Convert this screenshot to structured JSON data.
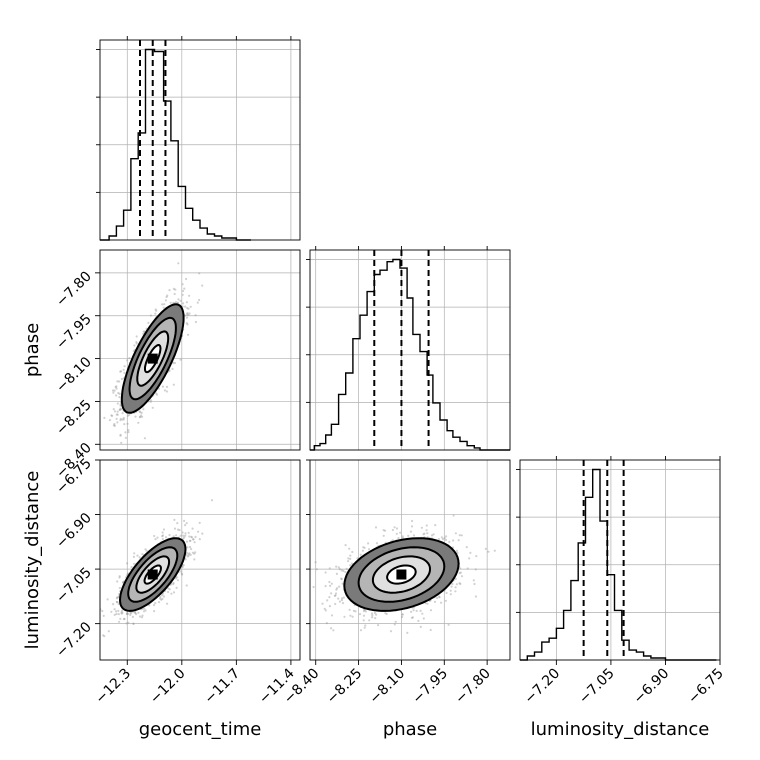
{
  "chart_data": {
    "type": "corner",
    "parameters": [
      "geocent_time",
      "phase",
      "luminosity_distance"
    ],
    "axis_labels": [
      "geocent_time",
      "phase",
      "luminosity_distance"
    ],
    "ranges": [
      [
        -12.45,
        -11.35
      ],
      [
        -8.42,
        -7.72
      ],
      [
        -7.3,
        -6.75
      ]
    ],
    "ticks": {
      "geocent_time": [
        -12.3,
        -12.0,
        -11.7,
        -11.4
      ],
      "phase": [
        -8.4,
        -8.25,
        -8.1,
        -7.95,
        -7.8
      ],
      "luminosity_distance": [
        -7.2,
        -7.05,
        -6.9,
        -6.75
      ]
    },
    "tick_labels": {
      "geocent_time": [
        "−12.3",
        "−12.0",
        "−11.7",
        "−11.4"
      ],
      "phase": [
        "−8.40",
        "−8.25",
        "−8.10",
        "−7.95",
        "−7.80"
      ],
      "luminosity_distance": [
        "−7.20",
        "−7.05",
        "−6.90",
        "−6.75"
      ]
    },
    "quantiles": {
      "geocent_time": [
        -12.23,
        -12.16,
        -12.09
      ],
      "phase": [
        -8.195,
        -8.1,
        -8.005
      ],
      "luminosity_distance": [
        -7.125,
        -7.06,
        -7.015
      ]
    },
    "histograms": {
      "geocent_time": {
        "bin_edges": [
          -12.45,
          -12.4,
          -12.36,
          -12.32,
          -12.28,
          -12.24,
          -12.2,
          -12.15,
          -12.1,
          -12.06,
          -12.02,
          -11.98,
          -11.94,
          -11.9,
          -11.86,
          -11.82,
          -11.78,
          -11.74,
          -11.7,
          -11.66,
          -11.62
        ],
        "counts": [
          0,
          2,
          7,
          15,
          41,
          54,
          96,
          95,
          70,
          50,
          27,
          16,
          10,
          6,
          3,
          2,
          1,
          1,
          0,
          0
        ]
      },
      "phase": {
        "bin_edges": [
          -8.42,
          -8.405,
          -8.385,
          -8.365,
          -8.345,
          -8.32,
          -8.295,
          -8.27,
          -8.245,
          -8.22,
          -8.195,
          -8.175,
          -8.15,
          -8.13,
          -8.105,
          -8.08,
          -8.06,
          -8.035,
          -8.01,
          -7.99,
          -7.965,
          -7.94,
          -7.92,
          -7.895,
          -7.87,
          -7.845,
          -7.825,
          -7.8,
          -7.775,
          -7.75,
          -7.72
        ],
        "counts": [
          0,
          2,
          3,
          7,
          12,
          26,
          36,
          52,
          63,
          74,
          82,
          84,
          88,
          89,
          85,
          71,
          54,
          46,
          35,
          22,
          14,
          9,
          6,
          4,
          2,
          1,
          0,
          0,
          0,
          0
        ]
      },
      "luminosity_distance": {
        "bin_edges": [
          -7.3,
          -7.28,
          -7.26,
          -7.24,
          -7.22,
          -7.2,
          -7.18,
          -7.16,
          -7.14,
          -7.12,
          -7.1,
          -7.08,
          -7.06,
          -7.04,
          -7.02,
          -7.0,
          -6.98,
          -6.96,
          -6.94,
          -6.92,
          -6.9,
          -6.88,
          -6.86,
          -6.84,
          -6.82,
          -6.8,
          -6.78,
          -6.76
        ],
        "counts": [
          0,
          2,
          4,
          9,
          11,
          16,
          25,
          40,
          59,
          82,
          96,
          70,
          43,
          25,
          10,
          5,
          4,
          2,
          1,
          1,
          0,
          0,
          0,
          0,
          0,
          0,
          0
        ]
      }
    },
    "pairs": [
      {
        "x": "geocent_time",
        "y": "phase",
        "mean": [
          -12.16,
          -8.1
        ],
        "sd": [
          0.085,
          0.095
        ],
        "rho": 0.75
      },
      {
        "x": "geocent_time",
        "y": "luminosity_distance",
        "mean": [
          -12.16,
          -7.065
        ],
        "sd": [
          0.09,
          0.05
        ],
        "rho": 0.7
      },
      {
        "x": "phase",
        "y": "luminosity_distance",
        "mean": [
          -8.1,
          -7.065
        ],
        "sd": [
          0.1,
          0.05
        ],
        "rho": 0.3
      }
    ],
    "contour_levels_sigma": [
      0.5,
      1.0,
      1.5,
      2.0
    ],
    "grid": true
  }
}
